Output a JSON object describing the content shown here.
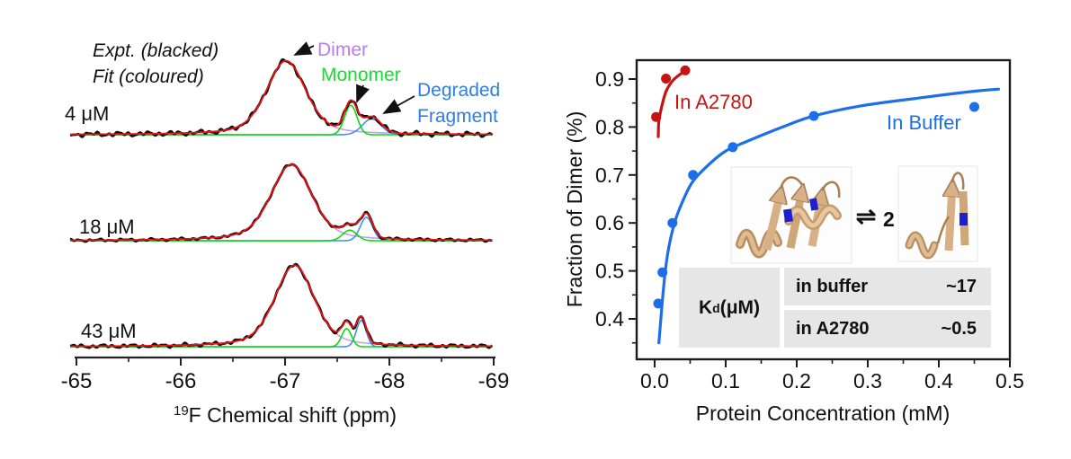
{
  "left_panel": {
    "legend": {
      "line1": "Expt. (blacked)",
      "line2": "Fit (coloured)"
    },
    "annotations": {
      "dimer": "Dimer",
      "monomer": "Monomer",
      "degraded_line1": "Degraded",
      "degraded_line2": "Fragment"
    },
    "concentrations": [
      "4 μM",
      "18 μM",
      "43 μM"
    ],
    "x_axis": {
      "label_sup": "19",
      "label": "F Chemical shift (ppm)",
      "ticks": [
        "-65",
        "-66",
        "-67",
        "-68",
        "-69"
      ]
    },
    "colors": {
      "expt": "#0d0d0d",
      "fit": "#ee1111",
      "dimer_component": "#c79df0",
      "monomer_component": "#09dd09",
      "degraded_component": "#4090f0",
      "dimer_label": "#b77df0",
      "monomer_label": "#12df2e",
      "degraded_label": "#2f7fe0"
    }
  },
  "right_panel": {
    "series_labels": {
      "a2780": "In A2780",
      "buffer": "In Buffer"
    },
    "y_axis": {
      "label": "Fraction of Dimer (%)",
      "ticks": [
        "0.9",
        "0.8",
        "0.7",
        "0.6",
        "0.5",
        "0.4"
      ]
    },
    "x_axis": {
      "label": "Protein Concentration (mM)",
      "ticks": [
        "0.0",
        "0.1",
        "0.2",
        "0.3",
        "0.4",
        "0.5"
      ]
    },
    "equilibrium": {
      "symbol": "⇌",
      "coefficient": "2"
    },
    "table": {
      "header_main": "K",
      "header_sub": "d",
      "header_unit": " (μM)",
      "rows": [
        {
          "label": "in buffer",
          "value": "~17"
        },
        {
          "label": "in A2780",
          "value": "~0.5"
        }
      ]
    },
    "colors": {
      "a2780": "#c41414",
      "buffer": "#1c6fe8"
    }
  },
  "chart_data": [
    {
      "type": "line",
      "title": "19F NMR spectra: experiment (black) with fit (red) deconvoluted into Dimer (purple), Monomer (green) and Degraded Fragment (blue) components",
      "xlabel": "19F Chemical shift (ppm)",
      "x_ticks": [
        -65,
        -66,
        -67,
        -68,
        -69
      ],
      "x_range": [
        -65,
        -69
      ],
      "series_labels": [
        "Expt. (blacked)",
        "Fit (coloured)"
      ],
      "components": [
        "Dimer",
        "Monomer",
        "Degraded Fragment"
      ],
      "spectra": [
        {
          "label": "4 μM",
          "peaks": [
            {
              "component": "Dimer",
              "ppm": -67.01,
              "rel_height": 0.98,
              "fwhm_ppm": 0.43,
              "shape": "voigt"
            },
            {
              "component": "Monomer",
              "ppm": -67.63,
              "rel_height": 0.39,
              "fwhm_ppm": 0.14,
              "shape": "gauss"
            },
            {
              "component": "Degraded Fragment",
              "ppm": -67.83,
              "rel_height": 0.21,
              "fwhm_ppm": 0.21,
              "shape": "gauss"
            }
          ]
        },
        {
          "label": "18 μM",
          "peaks": [
            {
              "component": "Dimer",
              "ppm": -67.06,
              "rel_height": 1.01,
              "fwhm_ppm": 0.45,
              "shape": "voigt"
            },
            {
              "component": "Monomer",
              "ppm": -67.62,
              "rel_height": 0.14,
              "fwhm_ppm": 0.16,
              "shape": "gauss"
            },
            {
              "component": "Degraded Fragment",
              "ppm": -67.78,
              "rel_height": 0.31,
              "fwhm_ppm": 0.14,
              "shape": "gauss"
            }
          ]
        },
        {
          "label": "43 μM",
          "peaks": [
            {
              "component": "Dimer",
              "ppm": -67.09,
              "rel_height": 1.08,
              "fwhm_ppm": 0.43,
              "shape": "voigt"
            },
            {
              "component": "Monomer",
              "ppm": -67.59,
              "rel_height": 0.24,
              "fwhm_ppm": 0.11,
              "shape": "gauss"
            },
            {
              "component": "Degraded Fragment",
              "ppm": -67.73,
              "rel_height": 0.35,
              "fwhm_ppm": 0.11,
              "shape": "gauss"
            }
          ]
        }
      ]
    },
    {
      "type": "scatter",
      "xlabel": "Protein Concentration (mM)",
      "ylabel": "Fraction of Dimer (%)",
      "xlim": [
        -0.025,
        0.5
      ],
      "ylim": [
        0.315,
        0.94
      ],
      "x_ticks": [
        0.0,
        0.1,
        0.2,
        0.3,
        0.4,
        0.5
      ],
      "y_ticks": [
        0.9,
        0.8,
        0.7,
        0.6,
        0.5,
        0.4
      ],
      "legend_position": "inside",
      "grid": false,
      "series": [
        {
          "name": "In A2780",
          "color": "#c41414",
          "kd_uM": "~0.5",
          "points": [
            [
              0.002,
              0.821
            ],
            [
              0.016,
              0.901
            ],
            [
              0.043,
              0.918
            ]
          ],
          "curve": [
            [
              0.005,
              0.78
            ],
            [
              0.006,
              0.812
            ],
            [
              0.01,
              0.843
            ],
            [
              0.016,
              0.874
            ],
            [
              0.025,
              0.896
            ],
            [
              0.037,
              0.911
            ],
            [
              0.047,
              0.919
            ]
          ]
        },
        {
          "name": "In Buffer",
          "color": "#1c6fe8",
          "kd_uM": "~17",
          "points": [
            [
              0.005,
              0.432
            ],
            [
              0.011,
              0.497
            ],
            [
              0.025,
              0.6
            ],
            [
              0.054,
              0.7
            ],
            [
              0.11,
              0.758
            ],
            [
              0.224,
              0.823
            ],
            [
              0.45,
              0.842
            ]
          ],
          "curve": [
            [
              0.006,
              0.35
            ],
            [
              0.011,
              0.44
            ],
            [
              0.015,
              0.5
            ],
            [
              0.02,
              0.55
            ],
            [
              0.028,
              0.6
            ],
            [
              0.038,
              0.64
            ],
            [
              0.053,
              0.685
            ],
            [
              0.075,
              0.72
            ],
            [
              0.1,
              0.75
            ],
            [
              0.13,
              0.77
            ],
            [
              0.18,
              0.8
            ],
            [
              0.224,
              0.823
            ],
            [
              0.29,
              0.844
            ],
            [
              0.38,
              0.862
            ],
            [
              0.452,
              0.875
            ],
            [
              0.484,
              0.879
            ]
          ]
        }
      ],
      "inset_table": {
        "header": "Kd (μM)",
        "rows": [
          [
            "in buffer",
            "~17"
          ],
          [
            "in A2780",
            "~0.5"
          ]
        ]
      }
    }
  ]
}
